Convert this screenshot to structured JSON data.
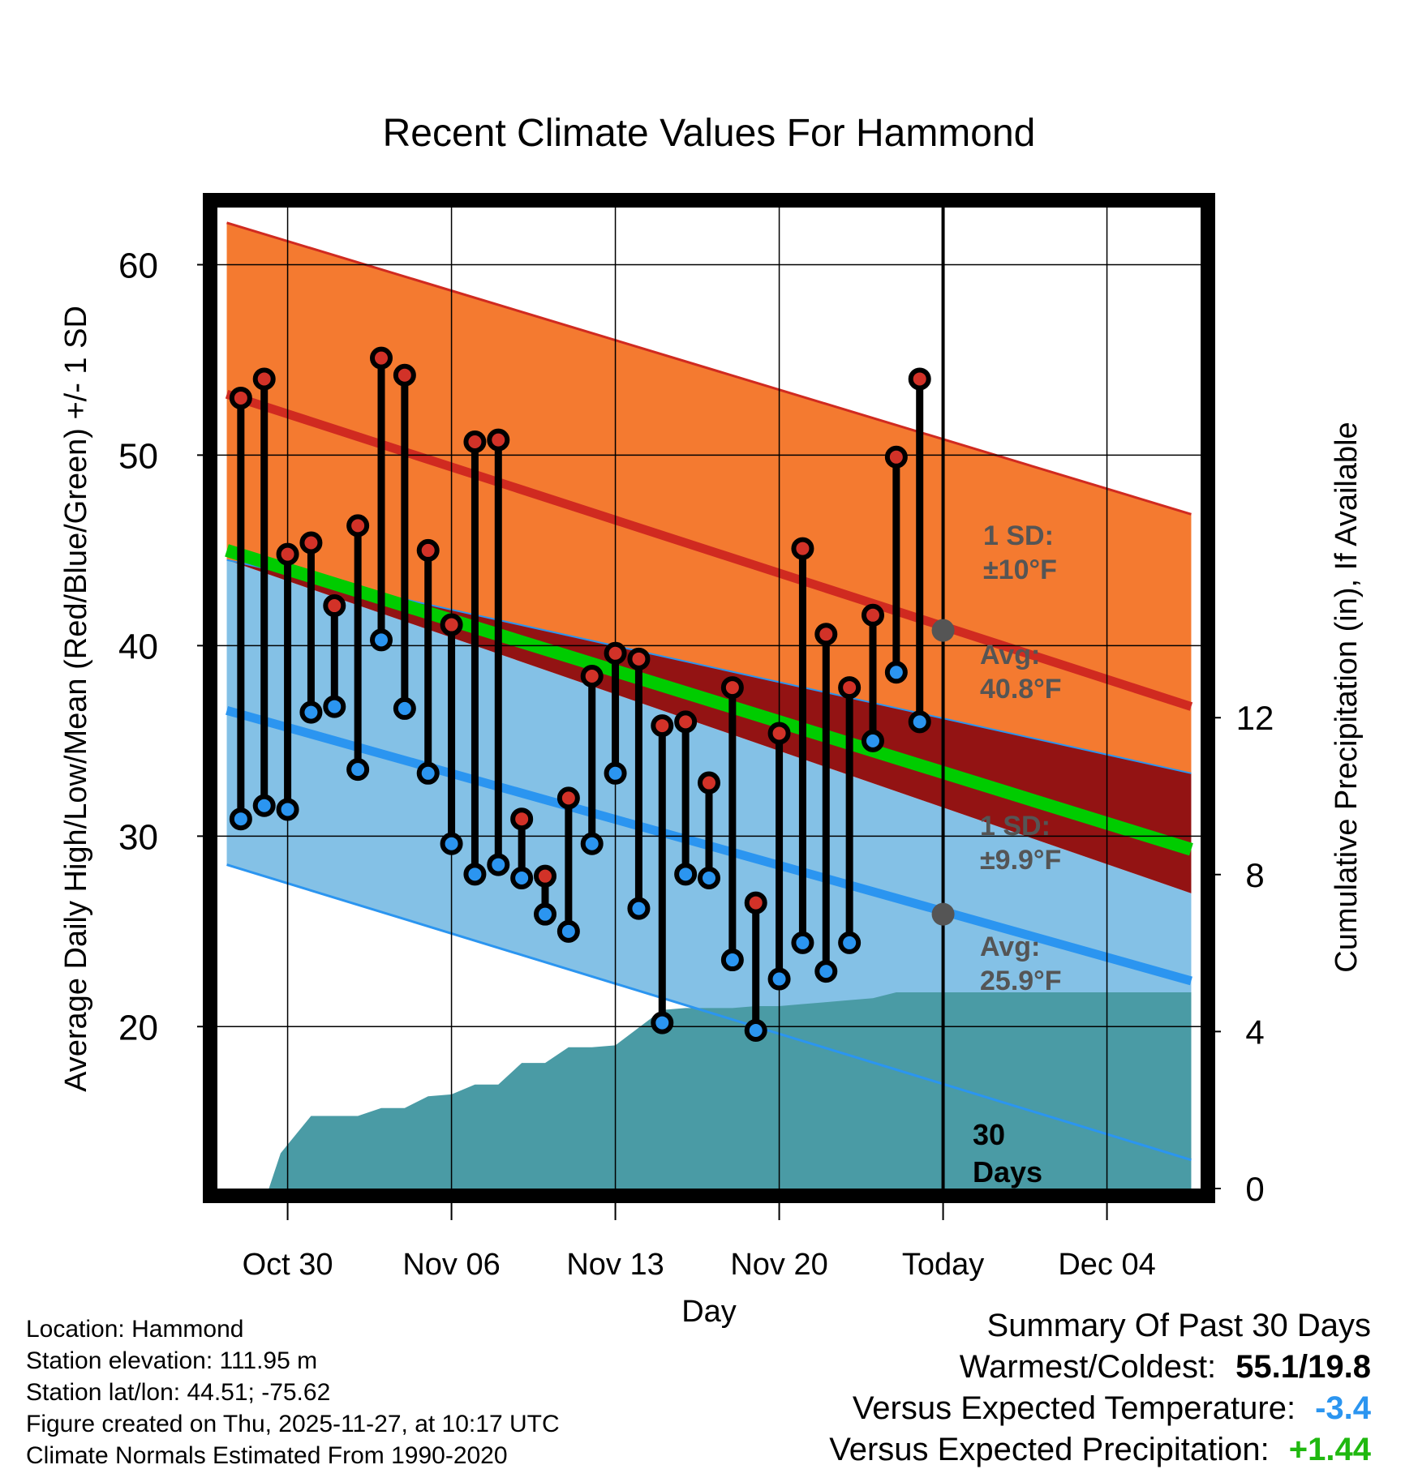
{
  "chart_data": {
    "type": "line",
    "title": "Recent Climate Values For Hammond",
    "xlabel": "Day",
    "ylabel": "Average Daily High/Low/Mean (Red/Blue/Green) +/- 1 SD",
    "ylabel_right": "Cumulative Precipitation (in), If Available",
    "x_range": [
      -3,
      39
    ],
    "ylim": [
      11.5,
      63
    ],
    "ylim_right": [
      0,
      25
    ],
    "x_ticks": [
      {
        "x": 0,
        "label": "Oct 30"
      },
      {
        "x": 7,
        "label": "Nov 06"
      },
      {
        "x": 14,
        "label": "Nov 13"
      },
      {
        "x": 21,
        "label": "Nov 20"
      },
      {
        "x": 28,
        "label": "Today"
      },
      {
        "x": 35,
        "label": "Dec 04"
      }
    ],
    "y_ticks": [
      20,
      30,
      40,
      50,
      60
    ],
    "y_minor_ticks": [
      15,
      25,
      35,
      45,
      55
    ],
    "y_right_ticks": [
      0,
      4,
      8,
      12
    ],
    "today_x": 28,
    "today_label": [
      "30",
      "Days"
    ],
    "normals": {
      "x": [
        -2.6,
        38.6
      ],
      "high_upper": [
        62.2,
        46.9
      ],
      "high_mean": [
        53.2,
        36.8
      ],
      "high_lower": [
        44.5,
        33.3
      ],
      "mean": [
        45.0,
        29.3
      ],
      "low_upper": [
        44.5,
        27.0
      ],
      "low_mean": [
        36.6,
        22.4
      ],
      "low_lower": [
        28.5,
        13.0
      ]
    },
    "high_sd_label": [
      "1 SD:",
      "±10°F"
    ],
    "high_avg_label": [
      "Avg:",
      "40.8°F"
    ],
    "low_sd_label": [
      "1 SD:",
      "±9.9°F"
    ],
    "low_avg_label": [
      "Avg:",
      "25.9°F"
    ],
    "high_avg_value": 40.8,
    "low_avg_value": 25.9,
    "daily": {
      "x": [
        -2,
        -1,
        0,
        1,
        2,
        3,
        4,
        5,
        6,
        7,
        8,
        9,
        10,
        11,
        12,
        13,
        14,
        15,
        16,
        17,
        18,
        19,
        20,
        21,
        22,
        23,
        24,
        25,
        26,
        27
      ],
      "high": [
        53.0,
        54.0,
        44.8,
        45.4,
        42.1,
        46.3,
        55.1,
        54.2,
        45.0,
        41.1,
        50.7,
        50.8,
        30.9,
        27.9,
        32.0,
        38.4,
        39.6,
        39.3,
        35.8,
        36.0,
        32.8,
        37.8,
        26.5,
        35.4,
        45.1,
        40.6,
        37.8,
        41.6,
        49.9,
        54.0
      ],
      "low": [
        30.9,
        31.6,
        31.4,
        36.5,
        36.8,
        33.5,
        40.3,
        36.7,
        33.3,
        29.6,
        28.0,
        28.5,
        27.8,
        25.9,
        25.0,
        29.6,
        33.3,
        26.2,
        20.2,
        28.0,
        27.8,
        23.5,
        19.8,
        22.5,
        24.4,
        22.9,
        24.4,
        35.0,
        38.6,
        36.0
      ]
    },
    "precip": {
      "x": [
        -0.8,
        -0.3,
        1.0,
        2.0,
        3.0,
        4.0,
        5.0,
        6.0,
        7.0,
        8.0,
        9.0,
        10.0,
        11.0,
        12.0,
        13.0,
        14.0,
        15.0,
        16.0,
        17.0,
        18.0,
        19.0,
        20.0,
        21.0,
        22.0,
        23.0,
        24.0,
        25.0,
        26.0,
        27.0,
        38.6
      ],
      "values": [
        0.0,
        0.9,
        1.85,
        1.85,
        1.85,
        2.05,
        2.05,
        2.35,
        2.4,
        2.65,
        2.65,
        3.2,
        3.2,
        3.6,
        3.6,
        3.65,
        4.1,
        4.55,
        4.6,
        4.6,
        4.6,
        4.65,
        4.65,
        4.7,
        4.75,
        4.8,
        4.85,
        5.0,
        5.0,
        5.0
      ]
    }
  },
  "footer": {
    "location": "Location: Hammond",
    "elevation": "Station elevation: 111.95 m",
    "latlon": "Station lat/lon: 44.51; -75.62",
    "created": "Figure created on Thu, 2025-11-27, at 10:17 UTC",
    "normals_note": "Climate Normals Estimated From 1990-2020"
  },
  "summary": {
    "title": "Summary Of Past 30 Days",
    "warm_cold_label": "Warmest/Coldest:",
    "warm_cold_value": "55.1/19.8",
    "temp_label": "Versus Expected Temperature:",
    "temp_value": "-3.4",
    "temp_color": "#2b95f0",
    "precip_label": "Versus Expected Precipitation:",
    "precip_value": "+1.44",
    "precip_color": "#1fb80f"
  },
  "colors": {
    "high_band": "#f47a30",
    "high_line": "#d02a20",
    "mean_line": "#00cc00",
    "low_band": "#84c1e6",
    "low_line": "#2b95f0",
    "overlap": "#931313",
    "precip": "#4a9ba5",
    "high_dot": "#d23228",
    "low_dot": "#2b95f0",
    "avg_dot": "#555555",
    "label_gray": "#555555"
  }
}
